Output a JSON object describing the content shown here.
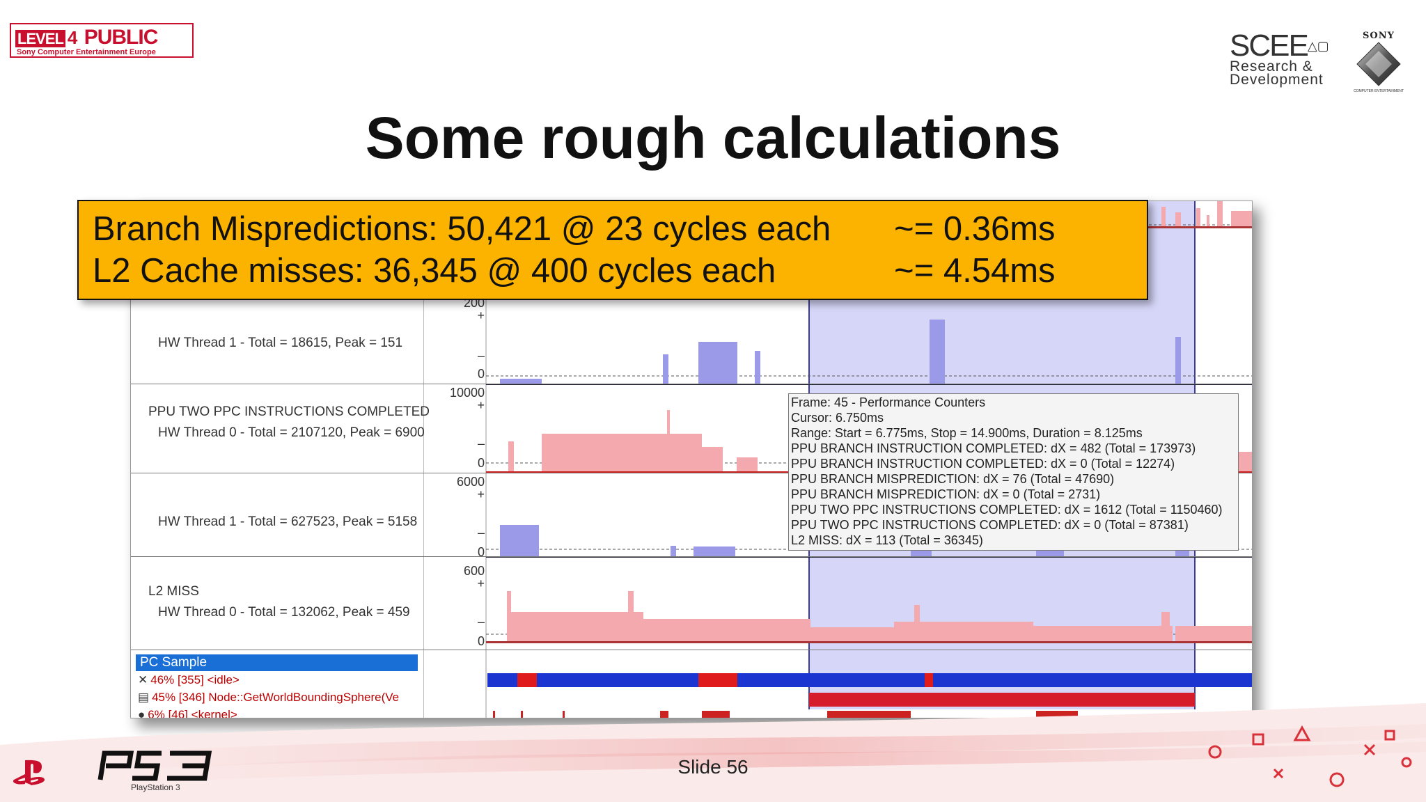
{
  "header": {
    "level4_num": "LEVEL",
    "level4_badge": "4",
    "level4_word": "PUBLIC",
    "level4_sub": "Sony Computer Entertainment Europe",
    "scee_big": "SCEE",
    "scee_line1": "Research &",
    "scee_line2": "Development",
    "sony": "SONY",
    "sony_sub": "COMPUTER ENTERTAINMENT"
  },
  "title": "Some rough calculations",
  "callout": {
    "line1_left": "Branch Mispredictions: 50,421 @ 23 cycles each",
    "line1_right": "~= 0.36ms",
    "line2_left": "L2 Cache misses: 36,345 @ 400 cycles each",
    "line2_right": "~= 4.54ms"
  },
  "profiler": {
    "counters": [
      {
        "label": "HW Thread 1 - Total = 18615, Peak = 151"
      },
      {
        "name": "PPU TWO PPC INSTRUCTIONS COMPLETED",
        "label": "HW Thread 0 - Total = 2107120, Peak = 6900"
      },
      {
        "label": "HW Thread 1 - Total = 627523, Peak = 5158"
      },
      {
        "name": "L2 MISS",
        "label": "HW Thread 0 - Total = 132062, Peak = 459"
      }
    ],
    "axis": [
      "200",
      "+",
      "–",
      "0",
      "10000",
      "+",
      "–",
      "0",
      "6000",
      "+",
      "–",
      "0",
      "600",
      "+",
      "–",
      "0"
    ],
    "pc_sample": {
      "header": "PC Sample",
      "items": [
        {
          "icon": "✕",
          "text": "46% [355] <idle>"
        },
        {
          "icon": "▤",
          "text": "45% [346] Node::GetWorldBoundingSphere(Ve"
        },
        {
          "icon": "●",
          "text": "6% [46] <kernel>"
        }
      ]
    },
    "tooltip": [
      "Frame: 45 - Performance Counters",
      "Cursor: 6.750ms",
      "Range: Start = 6.775ms, Stop = 14.900ms, Duration = 8.125ms",
      "PPU BRANCH INSTRUCTION COMPLETED: dX = 482 (Total = 173973)",
      "PPU BRANCH INSTRUCTION COMPLETED: dX = 0 (Total = 12274)",
      "PPU BRANCH MISPREDICTION: dX = 76 (Total = 47690)",
      "PPU BRANCH MISPREDICTION: dX = 0 (Total = 2731)",
      "PPU TWO PPC INSTRUCTIONS COMPLETED: dX = 1612 (Total = 1150460)",
      "PPU TWO PPC INSTRUCTIONS COMPLETED: dX = 0 (Total = 87381)",
      "L2 MISS: dX = 113 (Total = 36345)"
    ]
  },
  "footer": {
    "slide": "Slide 56",
    "ps3": "PS3",
    "ps3_sub": "PlayStation 3"
  },
  "colors": {
    "callout_bg": "#fbb300",
    "selection": "#c8c8f5",
    "red_series": "#f4a9ae",
    "blue_series": "#9a9ae8",
    "brand_red": "#c8102e"
  }
}
